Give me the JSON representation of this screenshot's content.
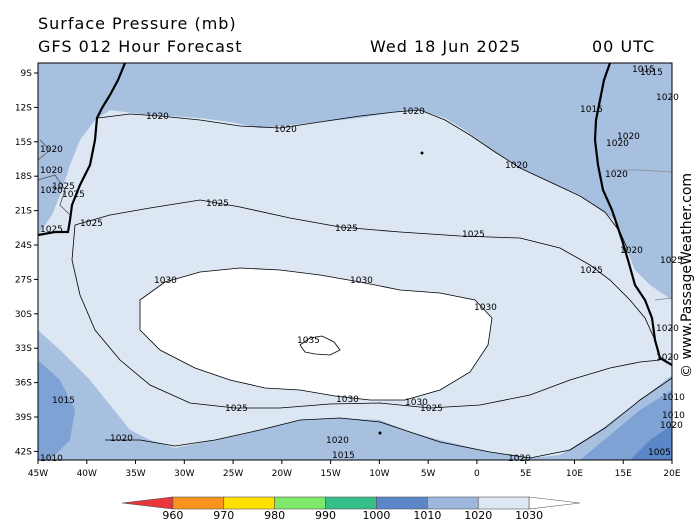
{
  "header": {
    "title": "Surface Pressure (mb)",
    "subtitle": "GFS 012 Hour Forecast",
    "date": "Wed 18 Jun 2025",
    "time": "00 UTC"
  },
  "credit": "© www.PassageWeather.com",
  "axes": {
    "lat_labels": [
      "9S",
      "12S",
      "15S",
      "18S",
      "21S",
      "24S",
      "27S",
      "30S",
      "33S",
      "36S",
      "39S",
      "42S"
    ],
    "lon_labels": [
      "45W",
      "40W",
      "35W",
      "30W",
      "25W",
      "20W",
      "15W",
      "10W",
      "5W",
      "0",
      "5E",
      "10E",
      "15E",
      "20E"
    ]
  },
  "legend": {
    "values": [
      "960",
      "970",
      "980",
      "990",
      "1000",
      "1010",
      "1020",
      "1030"
    ],
    "colors": [
      "#e8363b",
      "#f7931e",
      "#ffe000",
      "#7ee86a",
      "#35c089",
      "#5b86c8",
      "#9db7dd",
      "#dde7f3",
      "#ffffff"
    ]
  },
  "isobar_labels": [
    {
      "text": "1020",
      "id": "a"
    },
    {
      "text": "1020",
      "id": "b"
    },
    {
      "text": "1020",
      "id": "c"
    },
    {
      "text": "1020",
      "id": "d"
    },
    {
      "text": "1015",
      "id": "e"
    },
    {
      "text": "1015",
      "id": "f"
    },
    {
      "text": "1020",
      "id": "g"
    },
    {
      "text": "1020",
      "id": "h"
    },
    {
      "text": "1020",
      "id": "i"
    },
    {
      "text": "1020",
      "id": "j"
    },
    {
      "text": "1025",
      "id": "k"
    },
    {
      "text": "1025",
      "id": "l"
    },
    {
      "text": "1025",
      "id": "m"
    },
    {
      "text": "1025",
      "id": "n"
    },
    {
      "text": "1025",
      "id": "o"
    },
    {
      "text": "1025",
      "id": "p"
    },
    {
      "text": "1030",
      "id": "q"
    },
    {
      "text": "1030",
      "id": "r"
    },
    {
      "text": "1030",
      "id": "s"
    },
    {
      "text": "1030",
      "id": "t"
    },
    {
      "text": "1030",
      "id": "u"
    },
    {
      "text": "1035",
      "id": "v"
    },
    {
      "text": "1025",
      "id": "w"
    },
    {
      "text": "1025",
      "id": "x"
    },
    {
      "text": "1020",
      "id": "y"
    },
    {
      "text": "1015",
      "id": "z"
    },
    {
      "text": "1020",
      "id": "aa"
    },
    {
      "text": "1015",
      "id": "ab"
    },
    {
      "text": "1020",
      "id": "ac"
    },
    {
      "text": "1010",
      "id": "ad"
    },
    {
      "text": "1020",
      "id": "ae"
    },
    {
      "text": "1020",
      "id": "af"
    },
    {
      "text": "1010",
      "id": "ag"
    },
    {
      "text": "1005",
      "id": "ah"
    },
    {
      "text": "1020",
      "id": "ai"
    },
    {
      "text": "1025",
      "id": "aj"
    },
    {
      "text": "1025",
      "id": "ak"
    },
    {
      "text": "1020",
      "id": "al"
    },
    {
      "text": "1025",
      "id": "am"
    },
    {
      "text": "1015",
      "id": "an"
    },
    {
      "text": "1020",
      "id": "ao"
    },
    {
      "text": "1020",
      "id": "ap"
    },
    {
      "text": "1010",
      "id": "aq"
    },
    {
      "text": "1020",
      "id": "ar"
    }
  ]
}
